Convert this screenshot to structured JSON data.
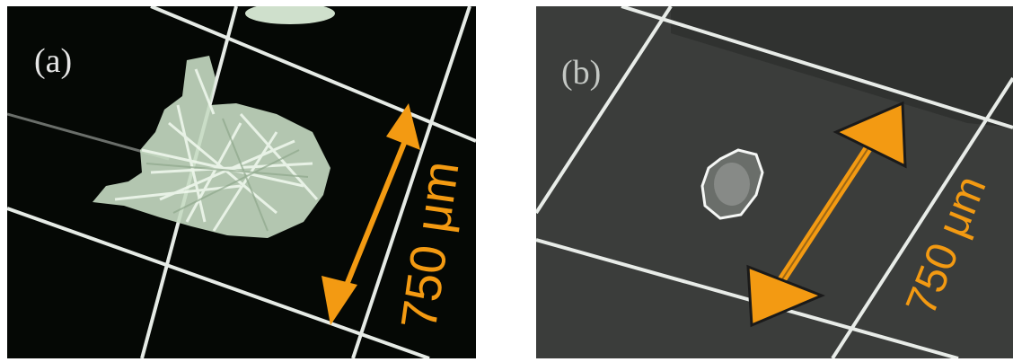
{
  "panels": [
    {
      "id": "a",
      "label": "(a)",
      "scale_text": "750 μm"
    },
    {
      "id": "b",
      "label": "(b)",
      "scale_text": "750 μm"
    }
  ],
  "colors": {
    "arrow": "#f39a12",
    "grid": "#e8ece8",
    "crystal_a": "#d8ead6",
    "background_a": "#050805",
    "background_b": "#3b3d3b"
  }
}
